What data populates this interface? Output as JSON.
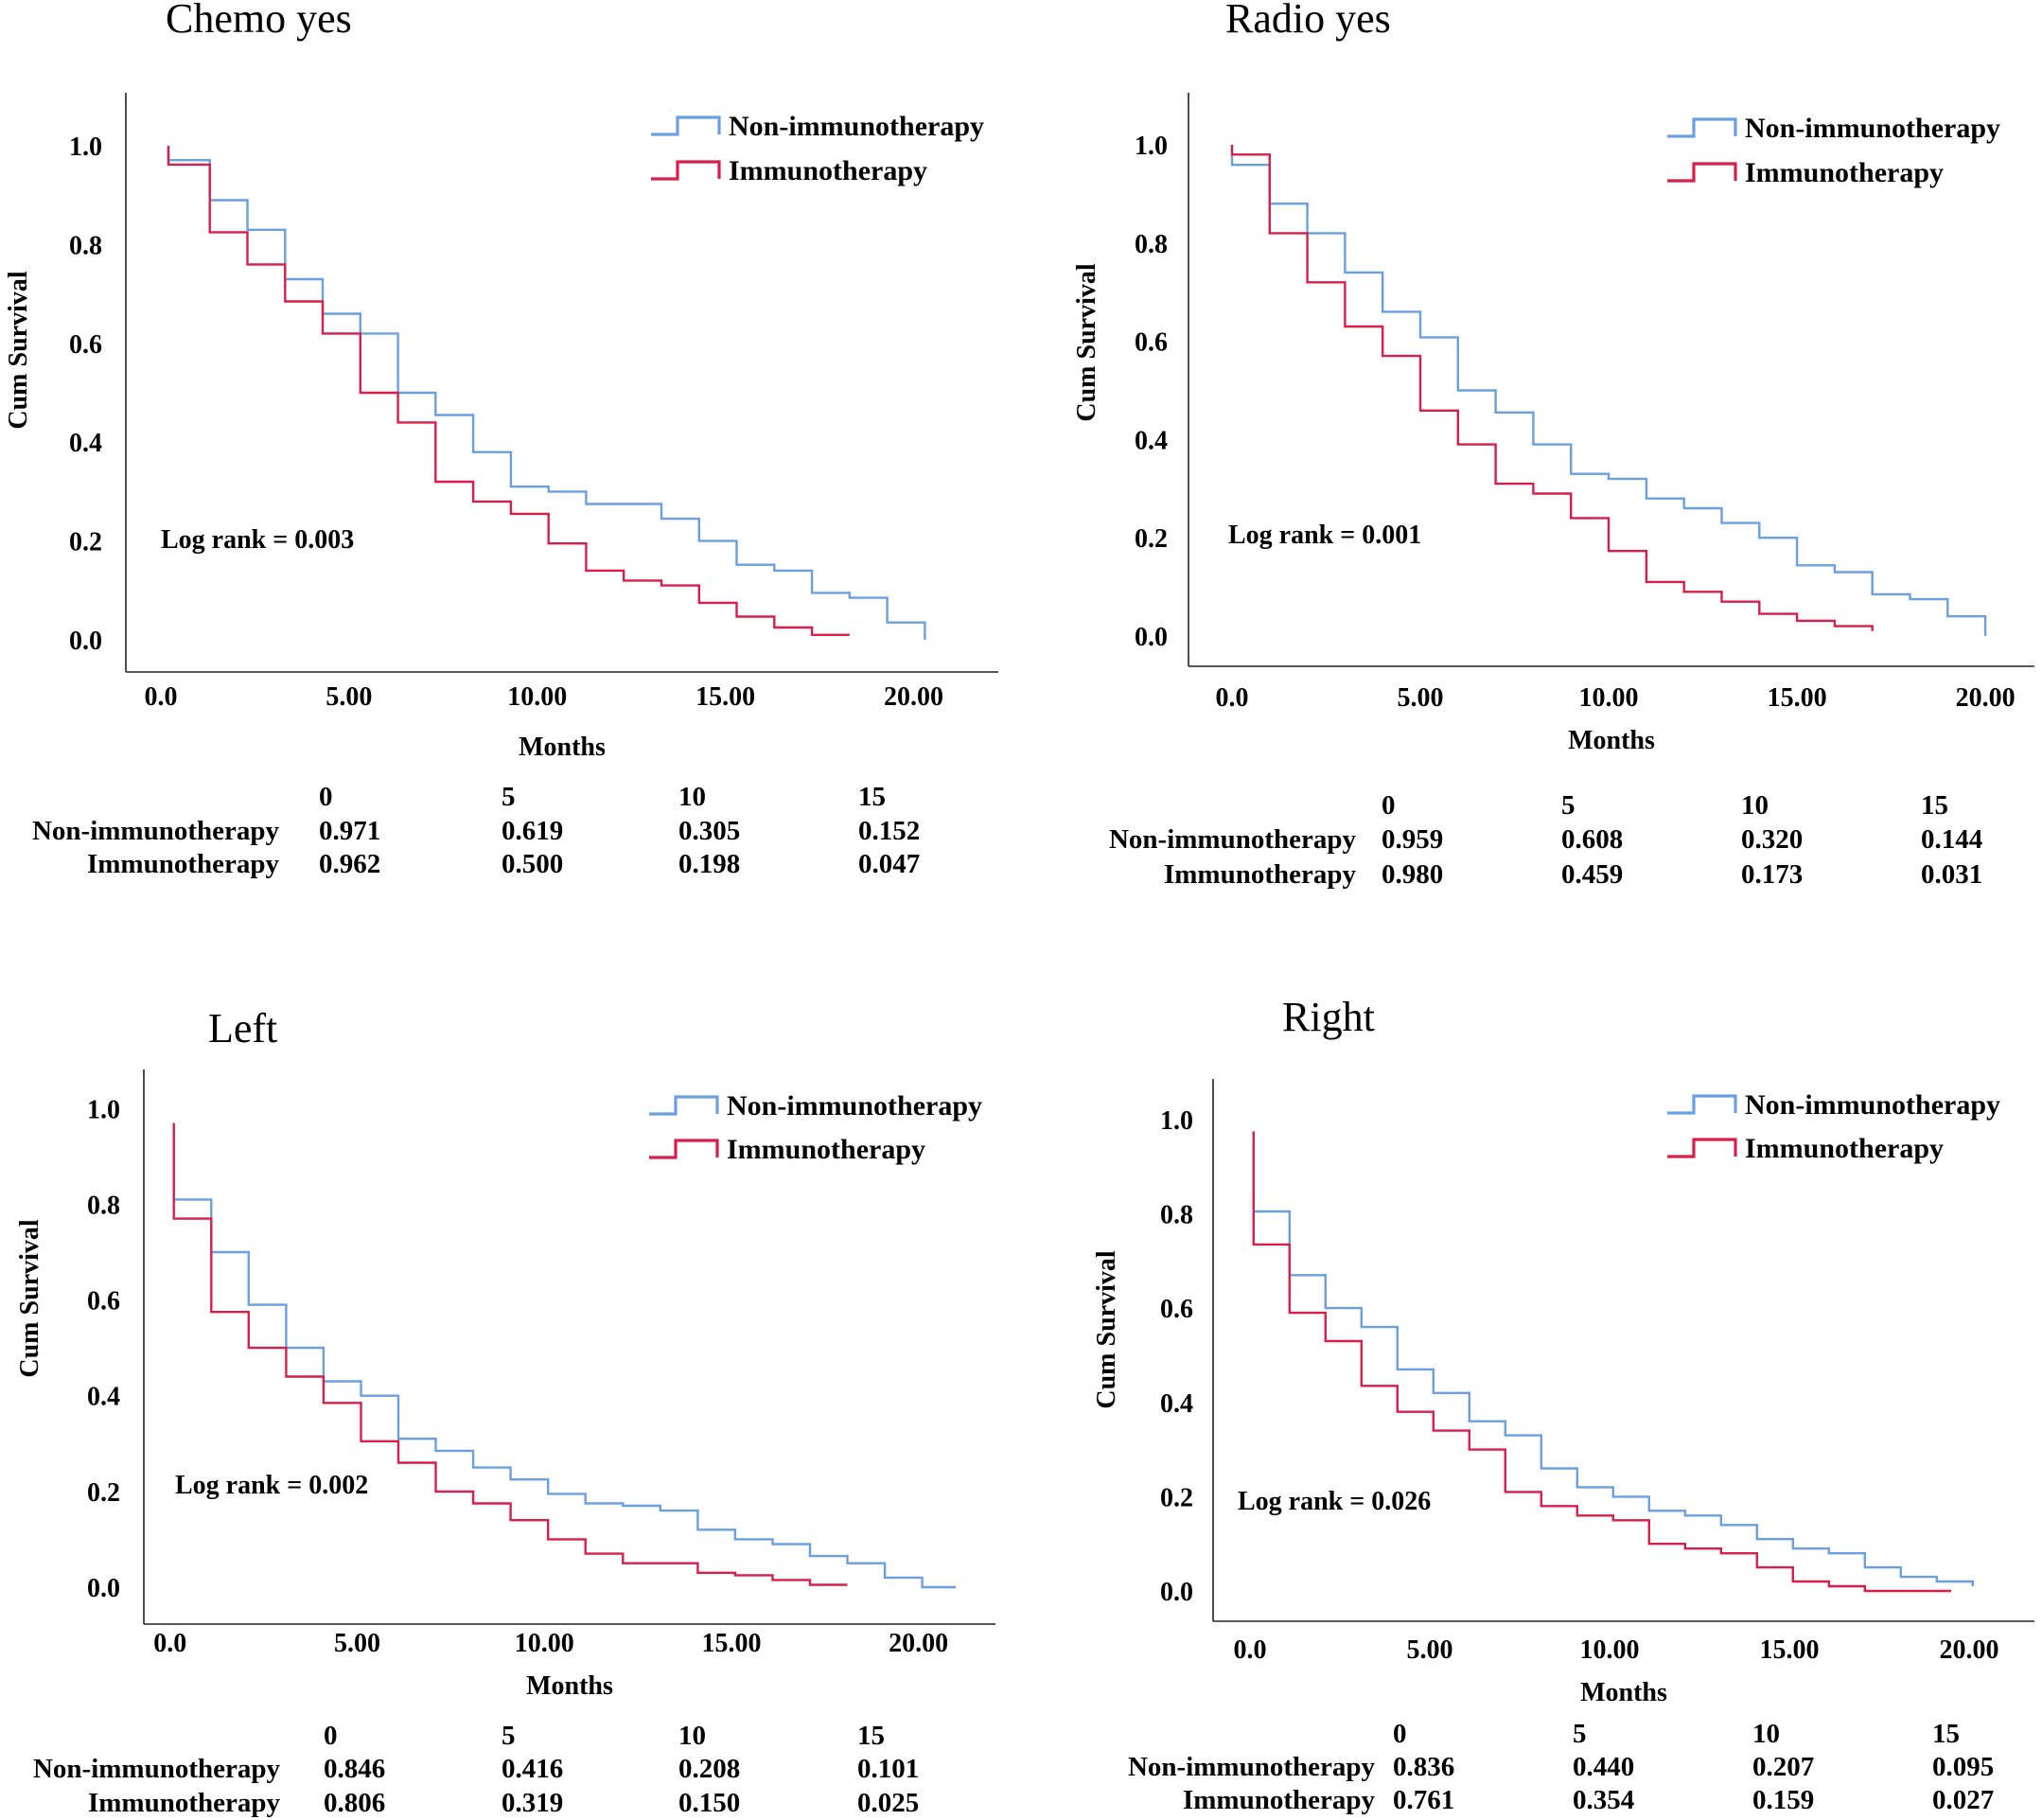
{
  "chart_data": [
    {
      "type": "line",
      "title": "Chemo yes",
      "xlabel": "Months",
      "ylabel": "Cum Survival",
      "xlim": [
        0,
        22
      ],
      "ylim": [
        0,
        1.05
      ],
      "xticks": [
        "0.0",
        "5.00",
        "10.00",
        "15.00",
        "20.00"
      ],
      "yticks": [
        "0.0",
        "0.2",
        "0.4",
        "0.6",
        "0.8",
        "1.0"
      ],
      "annotation": "Log rank = 0.003",
      "legend": [
        {
          "name": "Non-immunotherapy",
          "color": "#6a9fe0"
        },
        {
          "name": "Immunotherapy",
          "color": "#d81f4b"
        }
      ],
      "series": [
        {
          "name": "Non-immunotherapy",
          "color": "#6a9fe0",
          "x": [
            0.2,
            0.2,
            1.3,
            2.3,
            3.3,
            4.3,
            5.3,
            6.3,
            7.3,
            8.3,
            9.3,
            10.3,
            11.3,
            12.3,
            13.3,
            14.3,
            15.3,
            16.3,
            17.3,
            18.3,
            19.3,
            20.3
          ],
          "y": [
            1.0,
            0.971,
            0.89,
            0.83,
            0.73,
            0.66,
            0.62,
            0.5,
            0.455,
            0.38,
            0.31,
            0.3,
            0.275,
            0.275,
            0.245,
            0.2,
            0.152,
            0.14,
            0.095,
            0.085,
            0.035,
            0.0
          ]
        },
        {
          "name": "Immunotherapy",
          "color": "#d81f4b",
          "x": [
            0.2,
            0.2,
            1.3,
            2.3,
            3.3,
            4.3,
            5.3,
            6.3,
            7.3,
            8.3,
            9.3,
            10.3,
            11.3,
            12.3,
            13.3,
            14.3,
            15.3,
            16.3,
            17.3,
            18.3
          ],
          "y": [
            1.0,
            0.962,
            0.825,
            0.76,
            0.685,
            0.62,
            0.5,
            0.44,
            0.32,
            0.28,
            0.255,
            0.195,
            0.14,
            0.12,
            0.11,
            0.075,
            0.047,
            0.025,
            0.01,
            0.01
          ]
        }
      ],
      "table": {
        "header": [
          "0",
          "5",
          "10",
          "15"
        ],
        "rows": [
          {
            "label": "Non-immunotherapy",
            "values": [
              "0.971",
              "0.619",
              "0.305",
              "0.152"
            ]
          },
          {
            "label": "Immunotherapy",
            "values": [
              "0.962",
              "0.500",
              "0.198",
              "0.047"
            ]
          }
        ]
      }
    },
    {
      "type": "line",
      "title": "Radio yes",
      "xlabel": "Months",
      "ylabel": "Cum Survival",
      "xlim": [
        0,
        20.5
      ],
      "ylim": [
        0,
        1.05
      ],
      "xticks": [
        "0.0",
        "5.00",
        "10.00",
        "15.00",
        "20.00"
      ],
      "yticks": [
        "0.0",
        "0.2",
        "0.4",
        "0.6",
        "0.8",
        "1.0"
      ],
      "annotation": "Log rank = 0.001",
      "legend": [
        {
          "name": "Non-immunotherapy",
          "color": "#6a9fe0"
        },
        {
          "name": "Immunotherapy",
          "color": "#d81f4b"
        }
      ],
      "series": [
        {
          "name": "Non-immunotherapy",
          "color": "#6a9fe0",
          "x": [
            0,
            0,
            1.0,
            2.0,
            3.0,
            4.0,
            5.0,
            6.0,
            7.0,
            8.0,
            9.0,
            10.0,
            11.0,
            12.0,
            13.0,
            14.0,
            15.0,
            16.0,
            17.0,
            18.0,
            19.0,
            20.0
          ],
          "y": [
            1.0,
            0.959,
            0.88,
            0.82,
            0.74,
            0.66,
            0.608,
            0.5,
            0.455,
            0.39,
            0.33,
            0.32,
            0.28,
            0.26,
            0.23,
            0.2,
            0.144,
            0.13,
            0.085,
            0.075,
            0.04,
            0.0
          ]
        },
        {
          "name": "Immunotherapy",
          "color": "#d81f4b",
          "x": [
            0,
            0,
            1.0,
            2.0,
            3.0,
            4.0,
            5.0,
            6.0,
            7.0,
            8.0,
            9.0,
            10.0,
            11.0,
            12.0,
            13.0,
            14.0,
            15.0,
            16.0,
            17.0
          ],
          "y": [
            1.0,
            0.98,
            0.82,
            0.72,
            0.63,
            0.57,
            0.459,
            0.39,
            0.31,
            0.29,
            0.24,
            0.173,
            0.11,
            0.09,
            0.07,
            0.045,
            0.031,
            0.02,
            0.01
          ]
        }
      ],
      "table": {
        "header": [
          "0",
          "5",
          "10",
          "15"
        ],
        "rows": [
          {
            "label": "Non-immunotherapy",
            "values": [
              "0.959",
              "0.608",
              "0.320",
              "0.144"
            ]
          },
          {
            "label": "Immunotherapy",
            "values": [
              "0.980",
              "0.459",
              "0.173",
              "0.031"
            ]
          }
        ]
      }
    },
    {
      "type": "line",
      "title": "Left",
      "xlabel": "Months",
      "ylabel": "Cum Survival",
      "xlim": [
        -0.5,
        21.5
      ],
      "ylim": [
        0,
        1.05
      ],
      "xticks": [
        "0.0",
        "5.00",
        "10.00",
        "15.00",
        "20.00"
      ],
      "yticks": [
        "0.0",
        "0.2",
        "0.4",
        "0.6",
        "0.8",
        "1.0"
      ],
      "annotation": "Log rank = 0.002",
      "legend": [
        {
          "name": "Non-immunotherapy",
          "color": "#6a9fe0"
        },
        {
          "name": "Immunotherapy",
          "color": "#d81f4b"
        }
      ],
      "series": [
        {
          "name": "Non-immunotherapy",
          "color": "#6a9fe0",
          "x": [
            0.1,
            0.1,
            1.1,
            2.1,
            3.1,
            4.1,
            5.1,
            6.1,
            7.1,
            8.1,
            9.1,
            10.1,
            11.1,
            12.1,
            13.1,
            14.1,
            15.1,
            16.1,
            17.1,
            18.1,
            19.1,
            20.1,
            21.0
          ],
          "y": [
            0.96,
            0.81,
            0.7,
            0.59,
            0.5,
            0.43,
            0.4,
            0.31,
            0.285,
            0.25,
            0.225,
            0.195,
            0.175,
            0.17,
            0.16,
            0.12,
            0.1,
            0.09,
            0.065,
            0.05,
            0.02,
            0.0,
            0.0
          ]
        },
        {
          "name": "Immunotherapy",
          "color": "#d81f4b",
          "x": [
            0.1,
            0.1,
            1.1,
            2.1,
            3.1,
            4.1,
            5.1,
            6.1,
            7.1,
            8.1,
            9.1,
            10.1,
            11.1,
            12.1,
            13.1,
            14.1,
            15.1,
            16.1,
            17.1,
            18.1
          ],
          "y": [
            0.97,
            0.77,
            0.575,
            0.5,
            0.44,
            0.385,
            0.305,
            0.26,
            0.2,
            0.175,
            0.14,
            0.1,
            0.07,
            0.05,
            0.05,
            0.03,
            0.025,
            0.015,
            0.005,
            0.005
          ]
        }
      ],
      "table": {
        "header": [
          "0",
          "5",
          "10",
          "15"
        ],
        "rows": [
          {
            "label": "Non-immunotherapy",
            "values": [
              "0.846",
              "0.416",
              "0.208",
              "0.101"
            ]
          },
          {
            "label": "Immunotherapy",
            "values": [
              "0.806",
              "0.319",
              "0.150",
              "0.025"
            ]
          }
        ]
      }
    },
    {
      "type": "line",
      "title": "Right",
      "xlabel": "Months",
      "ylabel": "Cum Survival",
      "xlim": [
        -1.0,
        21.5
      ],
      "ylim": [
        0,
        1.05
      ],
      "xticks": [
        "0.0",
        "5.00",
        "10.00",
        "15.00",
        "20.00"
      ],
      "yticks": [
        "0.0",
        "0.2",
        "0.4",
        "0.6",
        "0.8",
        "1.0"
      ],
      "annotation": "Log rank = 0.026",
      "legend": [
        {
          "name": "Non-immunotherapy",
          "color": "#6a9fe0"
        },
        {
          "name": "Immunotherapy",
          "color": "#d81f4b"
        }
      ],
      "series": [
        {
          "name": "Non-immunotherapy",
          "color": "#6a9fe0",
          "x": [
            0.1,
            0.1,
            1.1,
            2.1,
            3.1,
            4.1,
            5.1,
            6.1,
            7.1,
            8.1,
            9.1,
            10.1,
            11.1,
            12.1,
            13.1,
            14.1,
            15.1,
            16.1,
            17.1,
            18.1,
            19.1,
            20.1
          ],
          "y": [
            0.95,
            0.805,
            0.67,
            0.6,
            0.56,
            0.47,
            0.42,
            0.36,
            0.33,
            0.26,
            0.22,
            0.2,
            0.17,
            0.16,
            0.14,
            0.11,
            0.09,
            0.08,
            0.05,
            0.03,
            0.02,
            0.01
          ]
        },
        {
          "name": "Immunotherapy",
          "color": "#d81f4b",
          "x": [
            0.1,
            0.1,
            1.1,
            2.1,
            3.1,
            4.1,
            5.1,
            6.1,
            7.1,
            8.1,
            9.1,
            10.1,
            11.1,
            12.1,
            13.1,
            14.1,
            15.1,
            16.1,
            17.1,
            18.1,
            19.5
          ],
          "y": [
            0.975,
            0.735,
            0.59,
            0.53,
            0.435,
            0.38,
            0.34,
            0.3,
            0.21,
            0.18,
            0.16,
            0.15,
            0.1,
            0.09,
            0.08,
            0.05,
            0.02,
            0.01,
            0.0,
            0.0,
            0.0
          ]
        }
      ],
      "table": {
        "header": [
          "0",
          "5",
          "10",
          "15"
        ],
        "rows": [
          {
            "label": "Non-immunotherapy",
            "values": [
              "0.836",
              "0.440",
              "0.207",
              "0.095"
            ]
          },
          {
            "label": "Immunotherapy",
            "values": [
              "0.761",
              "0.354",
              "0.159",
              "0.027"
            ]
          }
        ]
      }
    }
  ]
}
